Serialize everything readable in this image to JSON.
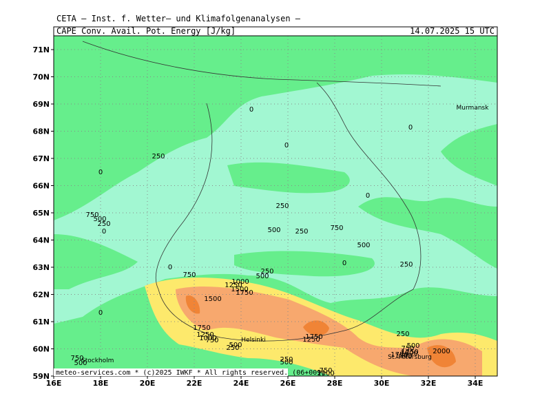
{
  "header": {
    "institute": "CETA — Inst. f. Wetter— und Klimafolgenanalysen —",
    "parameter": "CAPE_Conv._Avail._Pot._Energy_[J/kg]",
    "valid_time": "14.07.2025 15 UTC"
  },
  "footer": "meteo-services.com * (c)2025 IWKF * All rights reserved. (06+009)",
  "map": {
    "lat_labels": [
      "71N",
      "70N",
      "69N",
      "68N",
      "67N",
      "66N",
      "65N",
      "64N",
      "63N",
      "62N",
      "61N",
      "60N",
      "59N"
    ],
    "lon_labels": [
      "16E",
      "18E",
      "20E",
      "22E",
      "24E",
      "26E",
      "28E",
      "30E",
      "32E",
      "34E"
    ],
    "places": [
      "Murmansk",
      "Helsinki",
      "Stockholm",
      "St. Petersburg"
    ],
    "contour_labels": [
      0,
      0,
      0,
      250,
      0,
      0,
      250,
      750,
      500,
      250,
      0,
      500,
      750,
      250,
      500,
      0,
      250,
      0,
      750,
      250,
      500,
      1000,
      1250,
      1500,
      1750,
      1500,
      0,
      1750,
      1250,
      1000,
      750,
      250,
      500,
      250,
      500,
      750,
      1250,
      1750,
      1500,
      1000,
      1750,
      1250,
      2000,
      750,
      500,
      250,
      500,
      750,
      1000
    ]
  }
}
